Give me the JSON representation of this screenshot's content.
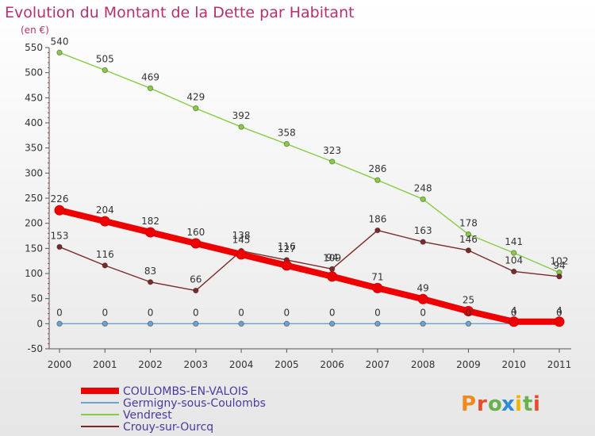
{
  "chart_data": {
    "type": "line",
    "title": "Evolution du Montant de la Dette par Habitant",
    "subtitle": "(en €)",
    "xlabel": "",
    "ylabel": "",
    "x": [
      "2000",
      "2001",
      "2002",
      "2003",
      "2004",
      "2005",
      "2006",
      "2007",
      "2008",
      "2009",
      "2010",
      "2011"
    ],
    "ylim": [
      -50,
      550
    ],
    "yticks": [
      -50,
      0,
      50,
      100,
      150,
      200,
      250,
      300,
      350,
      400,
      450,
      500,
      550
    ],
    "grid": false,
    "legend_position": "bottom-left",
    "series": [
      {
        "name": "COULOMBS-EN-VALOIS",
        "color": "#ee0000",
        "values": [
          226,
          204,
          182,
          160,
          138,
          116,
          94,
          71,
          49,
          25,
          4,
          4
        ],
        "labels": [
          "226",
          "204",
          "182",
          "160",
          "",
          "",
          "",
          "71",
          "49",
          "25",
          "4",
          "4"
        ],
        "emphasis": true
      },
      {
        "name": "Germigny-sous-Coulombs",
        "color": "#6aa2d0",
        "values": [
          0,
          0,
          0,
          0,
          0,
          0,
          0,
          0,
          0,
          0,
          0,
          0
        ],
        "labels": [
          "0",
          "0",
          "0",
          "0",
          "0",
          "0",
          "0",
          "0",
          "0",
          "0",
          "0",
          "0"
        ],
        "emphasis": false
      },
      {
        "name": "Vendrest",
        "color": "#88cc44",
        "values": [
          540,
          505,
          469,
          429,
          392,
          358,
          323,
          286,
          248,
          178,
          141,
          102
        ],
        "labels": [
          "540",
          "505",
          "469",
          "429",
          "392",
          "358",
          "323",
          "286",
          "248",
          "178",
          "141",
          "102"
        ],
        "emphasis": false
      },
      {
        "name": "Crouy-sur-Ourcq",
        "color": "#7a2a2a",
        "values": [
          153,
          116,
          83,
          66,
          145,
          127,
          109,
          186,
          163,
          146,
          104,
          94
        ],
        "labels": [
          "153",
          "116",
          "83",
          "66",
          "145",
          "127",
          "109",
          "186",
          "163",
          "146",
          "104",
          "94"
        ],
        "emphasis": false
      }
    ],
    "overlap_labels": [
      "138",
      "116",
      "94"
    ]
  },
  "colors": {
    "title": "#b5316e",
    "axis": "#555555",
    "tick_text": "#333333",
    "legend_text": "#4a3aa0"
  },
  "logo": {
    "text": "Proxiti"
  }
}
